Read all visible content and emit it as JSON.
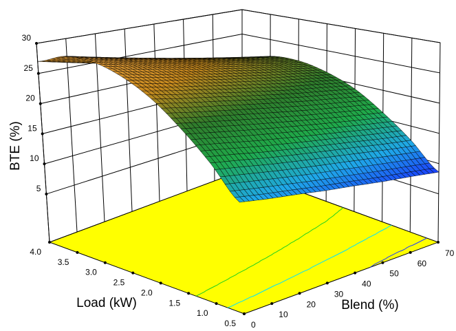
{
  "chart_data": {
    "type": "surface3d",
    "title": "",
    "xlabel": "Load (kW)",
    "ylabel": "Blend (%)",
    "zlabel": "BTE (%)",
    "xlim": [
      0.5,
      4.0
    ],
    "ylim": [
      0,
      70
    ],
    "zlim": [
      -3,
      30
    ],
    "x_ticks": [
      "0.5",
      "1.0",
      "1.5",
      "2.0",
      "2.5",
      "3.0",
      "3.5",
      "4.0"
    ],
    "y_ticks": [
      "0",
      "10",
      "20",
      "30",
      "40",
      "50",
      "60",
      "70"
    ],
    "z_ticks": [
      "5",
      "10",
      "15",
      "20",
      "25",
      "30"
    ],
    "x": [
      0.5,
      1.0,
      1.5,
      2.0,
      2.5,
      3.0,
      3.5,
      4.0
    ],
    "y": [
      0,
      10,
      20,
      30,
      40,
      50,
      60,
      70
    ],
    "z": [
      [
        12.5,
        11.9,
        11.4,
        10.8,
        10.3,
        9.7,
        9.2,
        8.6
      ],
      [
        17.0,
        16.4,
        15.7,
        15.1,
        14.5,
        13.9,
        13.2,
        12.6
      ],
      [
        21.0,
        20.3,
        19.6,
        18.9,
        18.2,
        17.5,
        16.8,
        16.1
      ],
      [
        24.5,
        23.7,
        23.0,
        22.2,
        21.4,
        20.6,
        19.9,
        19.1
      ],
      [
        27.0,
        26.1,
        25.3,
        24.4,
        23.6,
        22.7,
        21.9,
        21.0
      ],
      [
        28.5,
        27.6,
        26.6,
        25.7,
        24.8,
        23.9,
        22.9,
        22.0
      ],
      [
        28.7,
        27.7,
        26.7,
        25.7,
        24.7,
        23.7,
        22.7,
        21.7
      ],
      [
        27.0,
        25.9,
        24.8,
        23.7,
        22.7,
        21.6,
        20.5,
        19.4
      ]
    ],
    "floor_contour_levels": [
      10,
      15,
      20
    ],
    "floor_contour_colors": [
      "#1e3cff",
      "#00e0ff",
      "#20d020"
    ],
    "floor_color": "#ffff00",
    "colormap": [
      "#1a2cff",
      "#1fa8e8",
      "#1faa4a",
      "#2f7d2c",
      "#c88a1e",
      "#e8a040"
    ],
    "grid": true,
    "legend": "none"
  }
}
